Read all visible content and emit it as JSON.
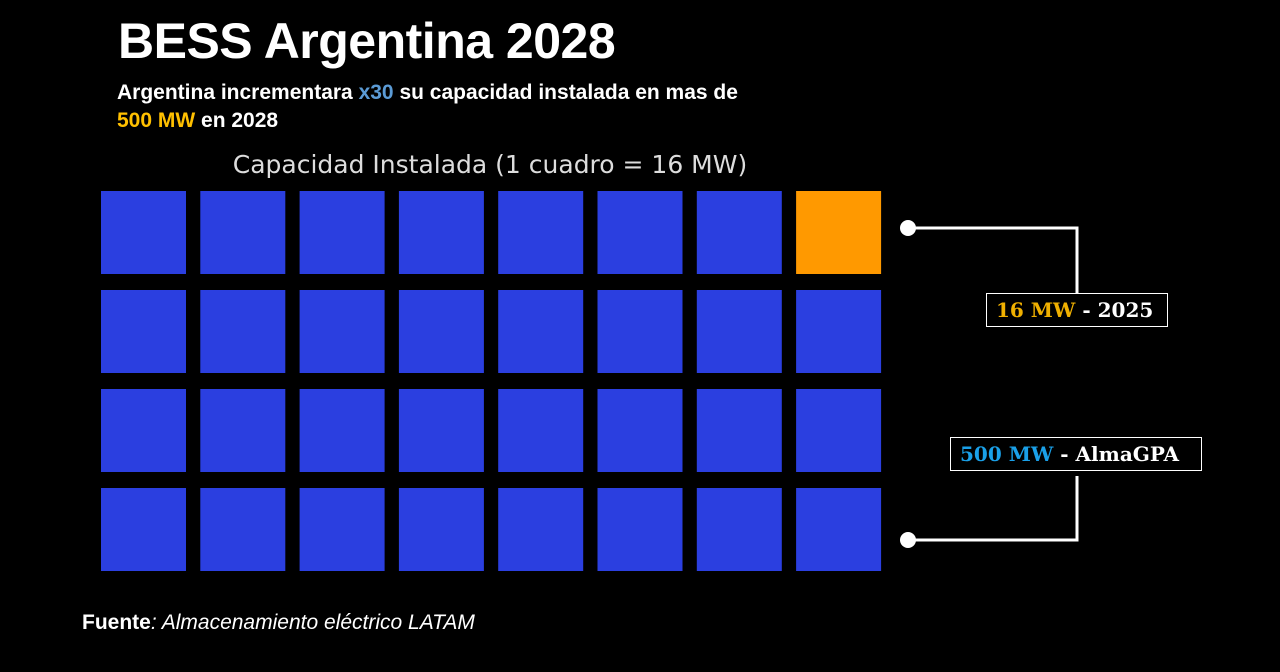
{
  "title": "BESS Argentina 2028",
  "subtitle": {
    "part1": "Argentina incrementara ",
    "highlight1": "x30",
    "part2": " su capacidad instalada en mas de",
    "highlight2": "500 MW",
    "part3": " en 2028"
  },
  "chart_data": {
    "type": "waffle",
    "title": "Capacidad Instalada (1 cuadro = 16 MW)",
    "rows": 4,
    "cols": 8,
    "unit_value_mw": 16,
    "highlighted_cells": [
      {
        "row": 0,
        "col": 7
      }
    ],
    "colors": {
      "base": "#2b3fe0",
      "highlight": "#ff9900"
    },
    "annotations": [
      {
        "value": "16 MW",
        "text": " - 2025",
        "value_color": "#f0b000",
        "target": "highlighted square"
      },
      {
        "value": "500 MW",
        "text": " - AlmaGPA",
        "value_color": "#1aa0e8",
        "target": "all squares"
      }
    ]
  },
  "source": {
    "label": "Fuente",
    "text": ": Almacenamiento eléctrico LATAM"
  }
}
